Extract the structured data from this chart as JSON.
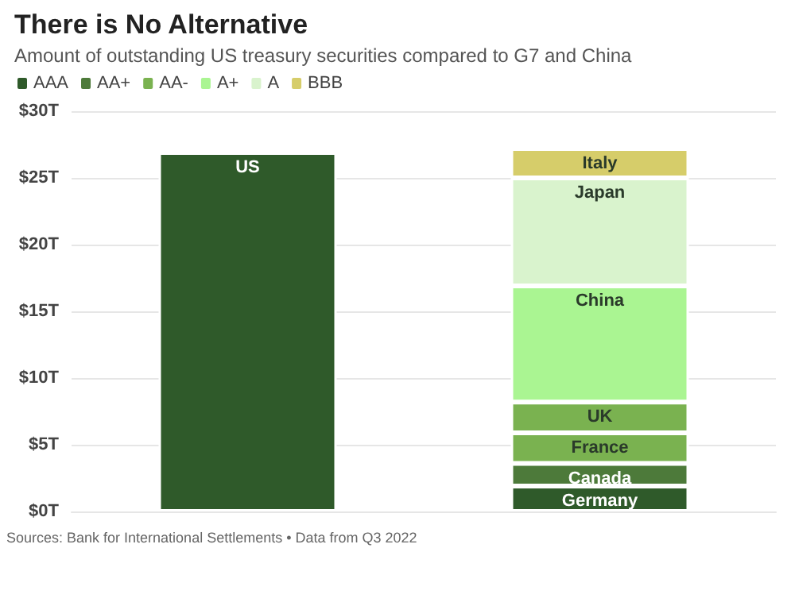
{
  "chart_data": {
    "type": "bar",
    "title": "There is No Alternative",
    "subtitle": "Amount of outstanding US treasury securities compared to G7 and China",
    "categories": [
      null,
      null
    ],
    "stacked": true,
    "series": [
      {
        "name": "AAA",
        "color": "#2f5a2a",
        "values": [
          26.9,
          1.9
        ],
        "value_labels": [
          "US",
          "Germany"
        ]
      },
      {
        "name": "AA+",
        "color": "#4d7a3a",
        "values": [
          null,
          1.7
        ],
        "value_labels": [
          null,
          "Canada"
        ]
      },
      {
        "name": "AA-",
        "color": "#7ab250",
        "values": [
          null,
          2.3
        ],
        "value_labels": [
          null,
          "France"
        ]
      },
      {
        "color": "#7ab250",
        "values": [
          null,
          2.3
        ],
        "value_labels": [
          null,
          "UK"
        ]
      },
      {
        "name": "A+",
        "color": "#aaf592",
        "values": [
          null,
          8.7
        ],
        "value_labels": [
          null,
          "China"
        ]
      },
      {
        "name": "A",
        "color": "#d9f3cd",
        "values": [
          null,
          8.1
        ],
        "value_labels": [
          null,
          "Japan"
        ]
      },
      {
        "name": "BBB",
        "color": "#d6cd6a",
        "values": [
          null,
          2.2
        ],
        "value_labels": [
          null,
          "Italy"
        ]
      }
    ],
    "ylim": [
      0,
      30
    ],
    "yticks": [
      {
        "value": 0,
        "label": "$0T"
      },
      {
        "value": 5,
        "label": "$5T"
      },
      {
        "value": 10,
        "label": "$10T"
      },
      {
        "value": 15,
        "label": "$15T"
      },
      {
        "value": 20,
        "label": "$20T"
      },
      {
        "value": 25,
        "label": "$25T"
      },
      {
        "value": 30,
        "label": "$30T"
      }
    ],
    "grid": "y",
    "legend": "top left",
    "annotations": [
      "Sources: Bank for International Settlements • Data from Q3 2022"
    ]
  }
}
